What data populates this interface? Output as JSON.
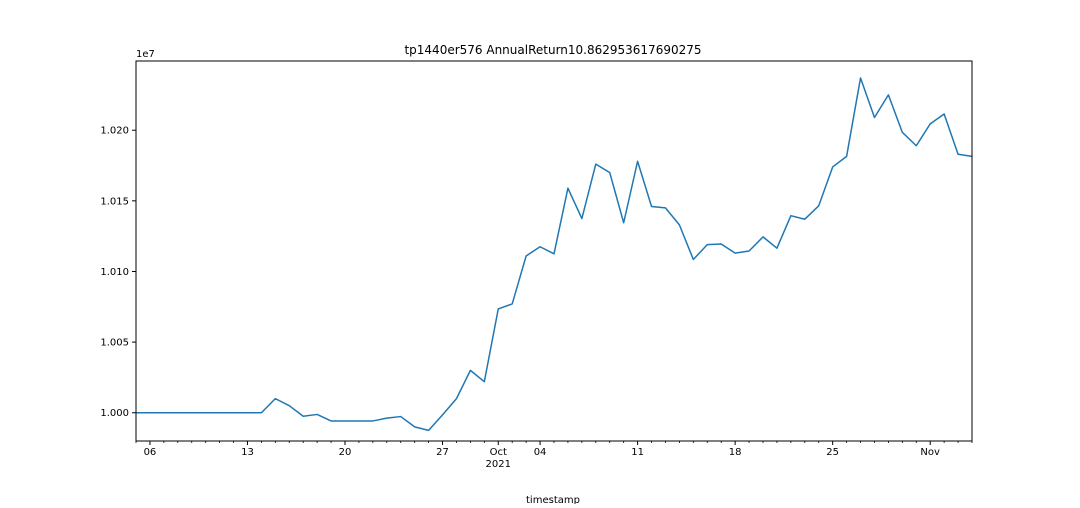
{
  "chart_data": {
    "type": "line",
    "title": "tp1440er576 AnnualReturn10.862953617690275",
    "xlabel": "timestamp",
    "ylabel": "",
    "y_offset_label": "1e7",
    "x_start": "2021-09-05",
    "x_end": "2021-11-04",
    "ylim": [
      9998000,
      10024900
    ],
    "grid": false,
    "legend": "none",
    "line_color": "#1f77b4",
    "x_major_ticks": [
      {
        "date": "2021-09-06",
        "label": "06",
        "sublabel": ""
      },
      {
        "date": "2021-09-13",
        "label": "13",
        "sublabel": ""
      },
      {
        "date": "2021-09-20",
        "label": "20",
        "sublabel": ""
      },
      {
        "date": "2021-09-27",
        "label": "27",
        "sublabel": ""
      },
      {
        "date": "2021-10-01",
        "label": "Oct",
        "sublabel": "2021"
      },
      {
        "date": "2021-10-04",
        "label": "04",
        "sublabel": ""
      },
      {
        "date": "2021-10-11",
        "label": "11",
        "sublabel": ""
      },
      {
        "date": "2021-10-18",
        "label": "18",
        "sublabel": ""
      },
      {
        "date": "2021-10-25",
        "label": "25",
        "sublabel": ""
      },
      {
        "date": "2021-11-01",
        "label": "Nov",
        "sublabel": ""
      }
    ],
    "y_ticks": [
      {
        "value": 10000000,
        "label": "1.000"
      },
      {
        "value": 10005000,
        "label": "1.005"
      },
      {
        "value": 10010000,
        "label": "1.010"
      },
      {
        "value": 10015000,
        "label": "1.015"
      },
      {
        "value": 10020000,
        "label": "1.020"
      }
    ],
    "series": [
      {
        "x": [
          "2021-09-05",
          "2021-09-06",
          "2021-09-07",
          "2021-09-08",
          "2021-09-09",
          "2021-09-10",
          "2021-09-11",
          "2021-09-12",
          "2021-09-13",
          "2021-09-14",
          "2021-09-15",
          "2021-09-16",
          "2021-09-17",
          "2021-09-18",
          "2021-09-19",
          "2021-09-20",
          "2021-09-21",
          "2021-09-22",
          "2021-09-23",
          "2021-09-24",
          "2021-09-25",
          "2021-09-26",
          "2021-09-27",
          "2021-09-28",
          "2021-09-29",
          "2021-09-30",
          "2021-10-01",
          "2021-10-02",
          "2021-10-03",
          "2021-10-04",
          "2021-10-05",
          "2021-10-06",
          "2021-10-07",
          "2021-10-08",
          "2021-10-09",
          "2021-10-10",
          "2021-10-11",
          "2021-10-12",
          "2021-10-13",
          "2021-10-14",
          "2021-10-15",
          "2021-10-16",
          "2021-10-17",
          "2021-10-18",
          "2021-10-19",
          "2021-10-20",
          "2021-10-21",
          "2021-10-22",
          "2021-10-23",
          "2021-10-24",
          "2021-10-25",
          "2021-10-26",
          "2021-10-27",
          "2021-10-28",
          "2021-10-29",
          "2021-10-30",
          "2021-10-31",
          "2021-11-01",
          "2021-11-02",
          "2021-11-03",
          "2021-11-04"
        ],
        "values": [
          10000000,
          10000000,
          10000000,
          10000000,
          10000000,
          10000000,
          10000000,
          10000000,
          10000000,
          10000000,
          10001000,
          10000500,
          9999750,
          9999880,
          9999420,
          9999420,
          9999420,
          9999420,
          9999620,
          9999730,
          9999000,
          9998750,
          9999850,
          10001000,
          10003000,
          10002200,
          10007350,
          10007700,
          10011100,
          10011750,
          10011250,
          10015900,
          10013750,
          10017600,
          10017000,
          10013450,
          10017800,
          10014600,
          10014500,
          10013300,
          10010850,
          10011900,
          10011950,
          10011300,
          10011450,
          10012450,
          10011650,
          10013950,
          10013700,
          10014650,
          10017400,
          10018150,
          10023700,
          10020900,
          10022500,
          10019850,
          10018900,
          10020450,
          10021150,
          10018300,
          10018150
        ]
      }
    ]
  }
}
